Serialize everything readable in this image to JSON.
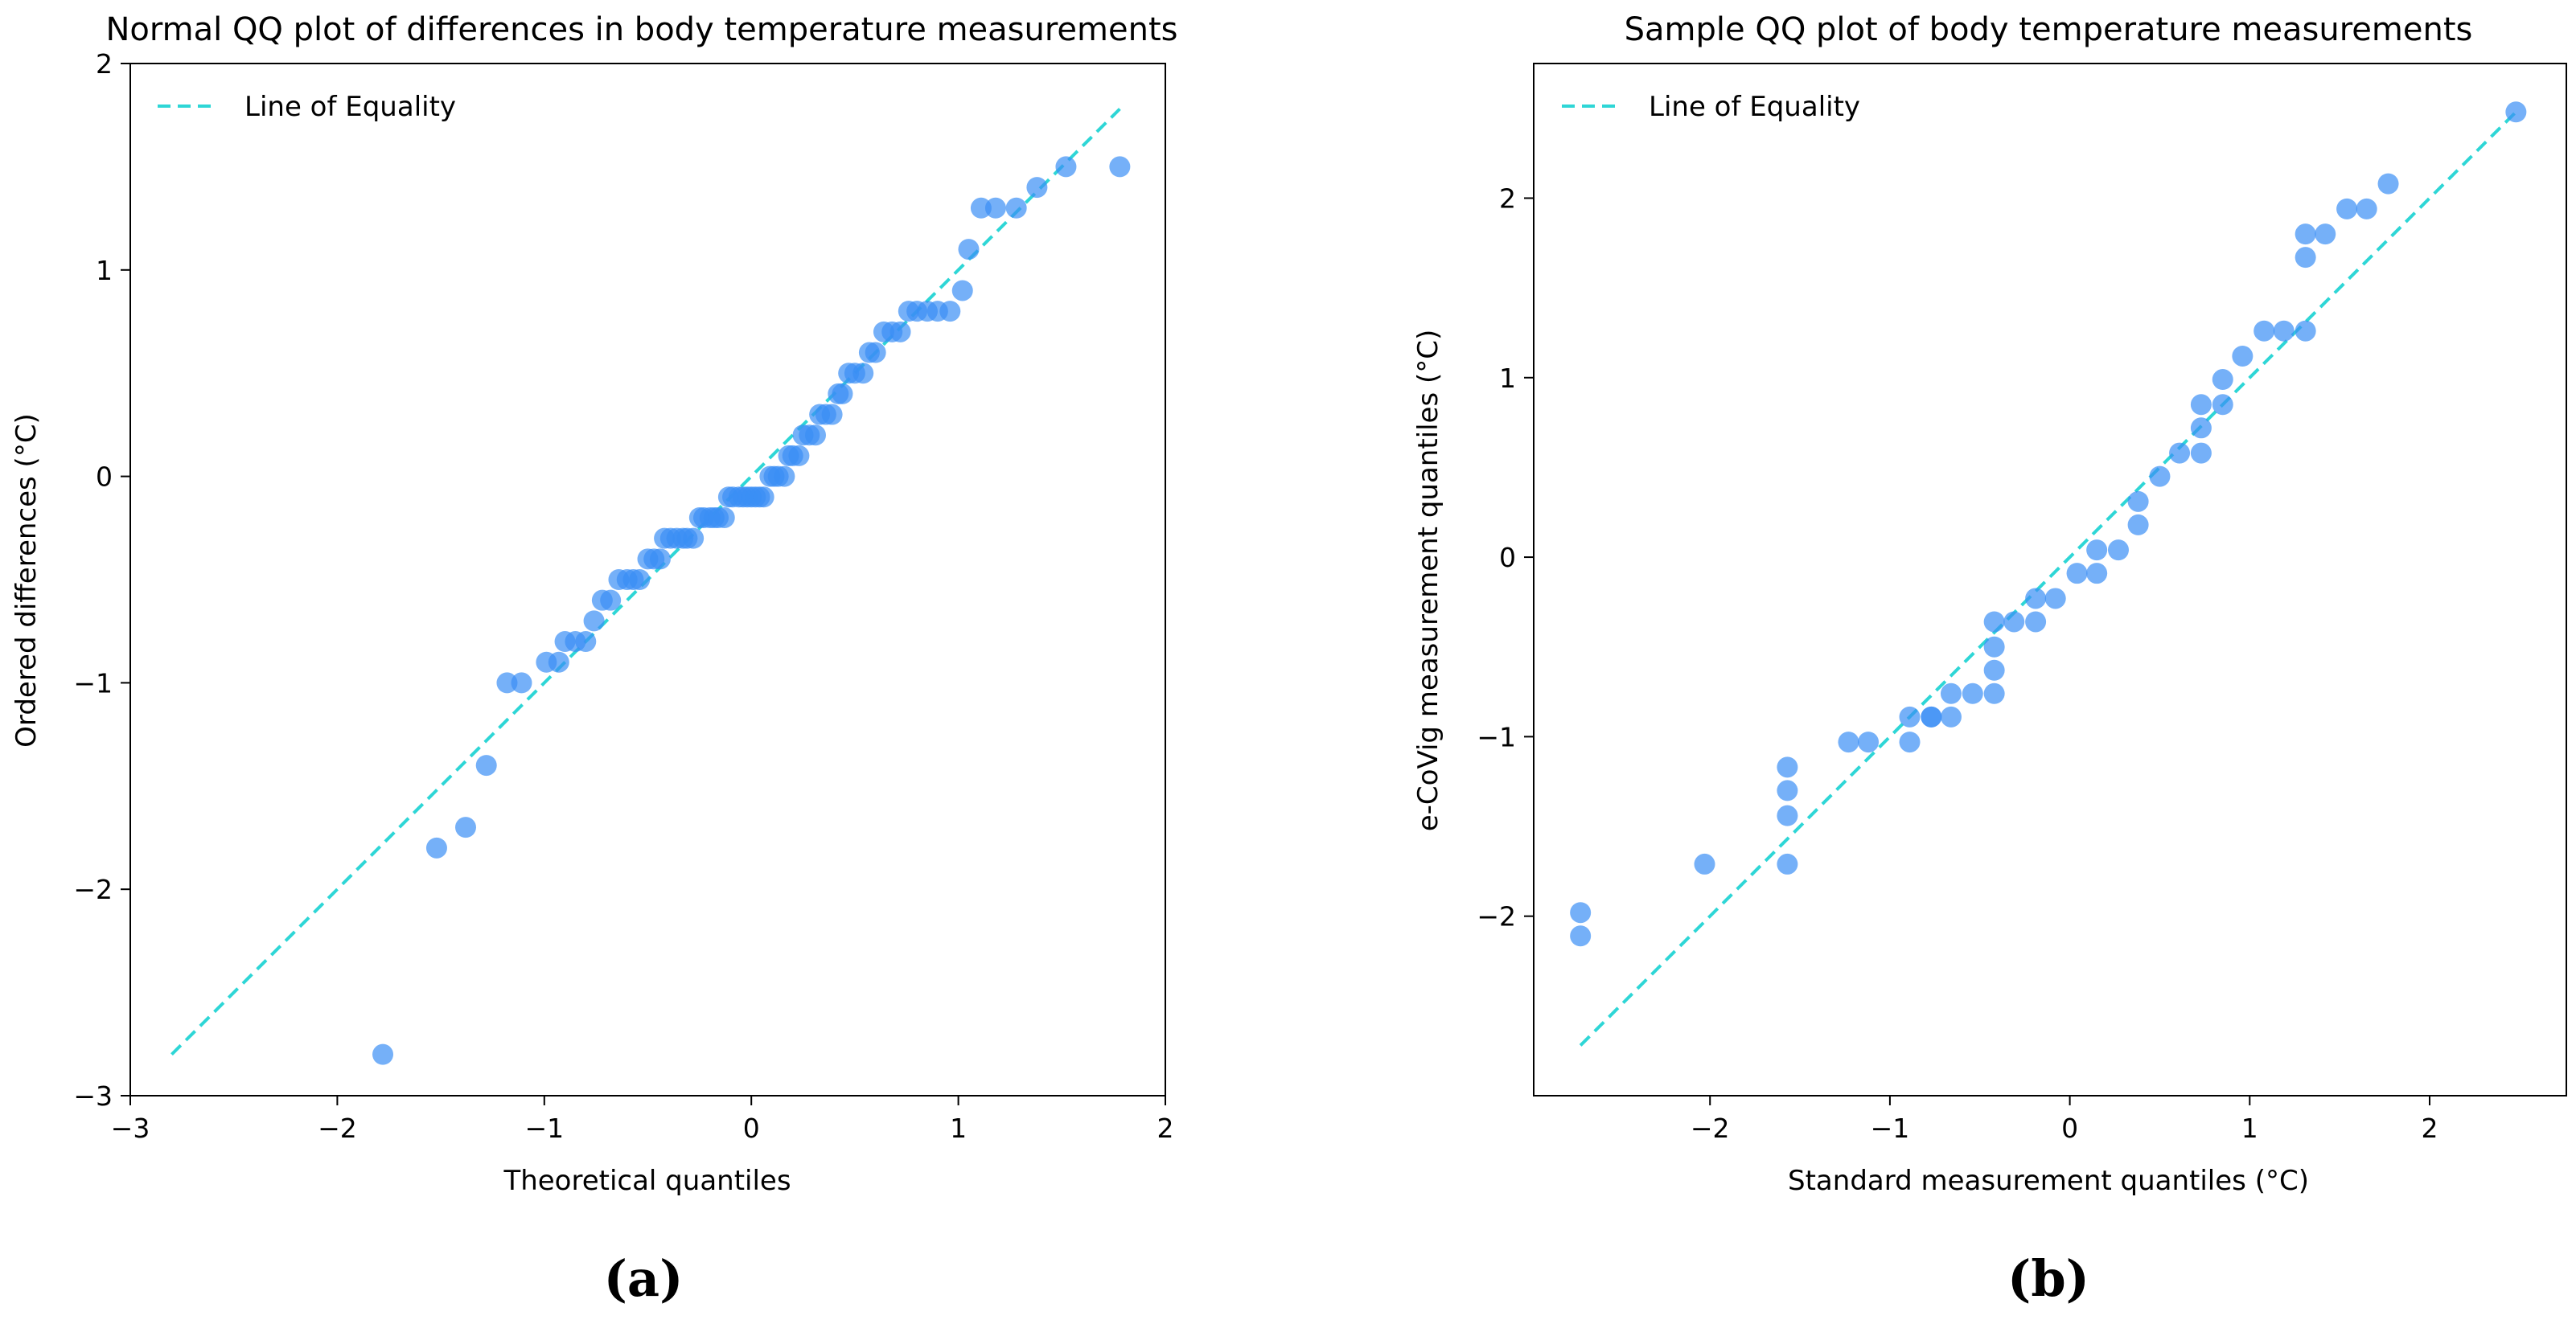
{
  "chart_data": [
    {
      "type": "scatter",
      "panel_caption": "(a)",
      "title": "Normal QQ plot of differences in body temperature measurements",
      "xlabel": "Theoretical quantiles",
      "ylabel": "Ordered differences (°C)",
      "xlim": [
        -3.0,
        2.0
      ],
      "ylim": [
        -3.0,
        2.0
      ],
      "xticks": [
        -3,
        -2,
        -1,
        0,
        1,
        2
      ],
      "yticks": [
        -3,
        -2,
        -1,
        0,
        1,
        2
      ],
      "xtick_labels": [
        "−3",
        "−2",
        "−1",
        "0",
        "1",
        "2"
      ],
      "ytick_labels": [
        "−3",
        "−2",
        "−1",
        "0",
        "1",
        "2"
      ],
      "legend": {
        "label": "Line of Equality",
        "position": "top-left"
      },
      "reference_line": {
        "name": "Line of Equality",
        "x": [
          -2.8,
          1.78
        ],
        "y": [
          -2.8,
          1.78
        ],
        "style": "dashed",
        "color": "#2ed6d6"
      },
      "series": [
        {
          "name": "points",
          "color": "#3a8ff5",
          "points": [
            [
              -1.78,
              -2.8
            ],
            [
              -1.52,
              -1.8
            ],
            [
              -1.38,
              -1.7
            ],
            [
              -1.28,
              -1.4
            ],
            [
              -1.18,
              -1.0
            ],
            [
              -1.11,
              -1.0
            ],
            [
              -0.99,
              -0.9
            ],
            [
              -0.93,
              -0.9
            ],
            [
              -0.9,
              -0.8
            ],
            [
              -0.85,
              -0.8
            ],
            [
              -0.8,
              -0.8
            ],
            [
              -0.76,
              -0.7
            ],
            [
              -0.72,
              -0.6
            ],
            [
              -0.68,
              -0.6
            ],
            [
              -0.64,
              -0.5
            ],
            [
              -0.6,
              -0.5
            ],
            [
              -0.57,
              -0.5
            ],
            [
              -0.54,
              -0.5
            ],
            [
              -0.5,
              -0.4
            ],
            [
              -0.47,
              -0.4
            ],
            [
              -0.44,
              -0.4
            ],
            [
              -0.42,
              -0.3
            ],
            [
              -0.39,
              -0.3
            ],
            [
              -0.36,
              -0.3
            ],
            [
              -0.33,
              -0.3
            ],
            [
              -0.31,
              -0.3
            ],
            [
              -0.28,
              -0.3
            ],
            [
              -0.25,
              -0.2
            ],
            [
              -0.23,
              -0.2
            ],
            [
              -0.2,
              -0.2
            ],
            [
              -0.18,
              -0.2
            ],
            [
              -0.16,
              -0.2
            ],
            [
              -0.13,
              -0.2
            ],
            [
              -0.11,
              -0.1
            ],
            [
              -0.09,
              -0.1
            ],
            [
              -0.06,
              -0.1
            ],
            [
              -0.04,
              -0.1
            ],
            [
              -0.02,
              -0.1
            ],
            [
              0.0,
              -0.1
            ],
            [
              0.02,
              -0.1
            ],
            [
              0.04,
              -0.1
            ],
            [
              0.06,
              -0.1
            ],
            [
              0.09,
              0.0
            ],
            [
              0.11,
              0.0
            ],
            [
              0.13,
              0.0
            ],
            [
              0.16,
              0.0
            ],
            [
              0.18,
              0.1
            ],
            [
              0.2,
              0.1
            ],
            [
              0.23,
              0.1
            ],
            [
              0.25,
              0.2
            ],
            [
              0.28,
              0.2
            ],
            [
              0.31,
              0.2
            ],
            [
              0.33,
              0.3
            ],
            [
              0.36,
              0.3
            ],
            [
              0.39,
              0.3
            ],
            [
              0.42,
              0.4
            ],
            [
              0.44,
              0.4
            ],
            [
              0.47,
              0.5
            ],
            [
              0.5,
              0.5
            ],
            [
              0.54,
              0.5
            ],
            [
              0.57,
              0.6
            ],
            [
              0.6,
              0.6
            ],
            [
              0.64,
              0.7
            ],
            [
              0.68,
              0.7
            ],
            [
              0.72,
              0.7
            ],
            [
              0.76,
              0.8
            ],
            [
              0.8,
              0.8
            ],
            [
              0.85,
              0.8
            ],
            [
              0.9,
              0.8
            ],
            [
              0.96,
              0.8
            ],
            [
              1.02,
              0.9
            ],
            [
              1.05,
              1.1
            ],
            [
              1.11,
              1.3
            ],
            [
              1.18,
              1.3
            ],
            [
              1.28,
              1.3
            ],
            [
              1.38,
              1.4
            ],
            [
              1.52,
              1.5
            ],
            [
              1.78,
              1.5
            ]
          ]
        }
      ]
    },
    {
      "type": "scatter",
      "panel_caption": "(b)",
      "title": "Sample QQ plot of body temperature measurements",
      "xlabel": "Standard measurement quantiles (°C)",
      "ylabel": "e-CoVig measurement quantiles (°C)",
      "xlim": [
        -2.98,
        2.76
      ],
      "ylim": [
        -3.0,
        2.75
      ],
      "xticks": [
        -2,
        -1,
        0,
        1,
        2
      ],
      "yticks": [
        -2,
        -1,
        0,
        1,
        2
      ],
      "xtick_labels": [
        "−2",
        "−1",
        "0",
        "1",
        "2"
      ],
      "ytick_labels": [
        "−2",
        "−1",
        "0",
        "1",
        "2"
      ],
      "legend": {
        "label": "Line of Equality",
        "position": "top-left"
      },
      "reference_line": {
        "name": "Line of Equality",
        "x": [
          -2.72,
          2.48
        ],
        "y": [
          -2.72,
          2.48
        ],
        "style": "dashed",
        "color": "#2ed6d6"
      },
      "series": [
        {
          "name": "points",
          "color": "#3a8ff5",
          "points": [
            [
              -2.72,
              -2.11
            ],
            [
              -2.72,
              -1.98
            ],
            [
              -2.03,
              -1.71
            ],
            [
              -1.57,
              -1.71
            ],
            [
              -1.57,
              -1.44
            ],
            [
              -1.57,
              -1.3
            ],
            [
              -1.57,
              -1.17
            ],
            [
              -1.23,
              -1.03
            ],
            [
              -1.12,
              -1.03
            ],
            [
              -0.89,
              -1.03
            ],
            [
              -0.89,
              -0.89
            ],
            [
              -0.77,
              -0.89
            ],
            [
              -0.77,
              -0.89
            ],
            [
              -0.66,
              -0.76
            ],
            [
              -0.66,
              -0.89
            ],
            [
              -0.54,
              -0.76
            ],
            [
              -0.42,
              -0.76
            ],
            [
              -0.42,
              -0.63
            ],
            [
              -0.42,
              -0.5
            ],
            [
              -0.42,
              -0.36
            ],
            [
              -0.31,
              -0.36
            ],
            [
              -0.19,
              -0.36
            ],
            [
              -0.19,
              -0.23
            ],
            [
              -0.08,
              -0.23
            ],
            [
              0.04,
              -0.09
            ],
            [
              0.15,
              -0.09
            ],
            [
              0.15,
              0.04
            ],
            [
              0.27,
              0.04
            ],
            [
              0.38,
              0.18
            ],
            [
              0.38,
              0.31
            ],
            [
              0.5,
              0.45
            ],
            [
              0.61,
              0.58
            ],
            [
              0.73,
              0.58
            ],
            [
              0.73,
              0.72
            ],
            [
              0.73,
              0.85
            ],
            [
              0.85,
              0.85
            ],
            [
              0.85,
              0.99
            ],
            [
              0.96,
              1.12
            ],
            [
              1.08,
              1.26
            ],
            [
              1.19,
              1.26
            ],
            [
              1.31,
              1.26
            ],
            [
              1.31,
              1.67
            ],
            [
              1.31,
              1.8
            ],
            [
              1.42,
              1.8
            ],
            [
              1.54,
              1.94
            ],
            [
              1.65,
              1.94
            ],
            [
              1.77,
              2.08
            ],
            [
              2.48,
              2.48
            ]
          ]
        }
      ]
    }
  ]
}
